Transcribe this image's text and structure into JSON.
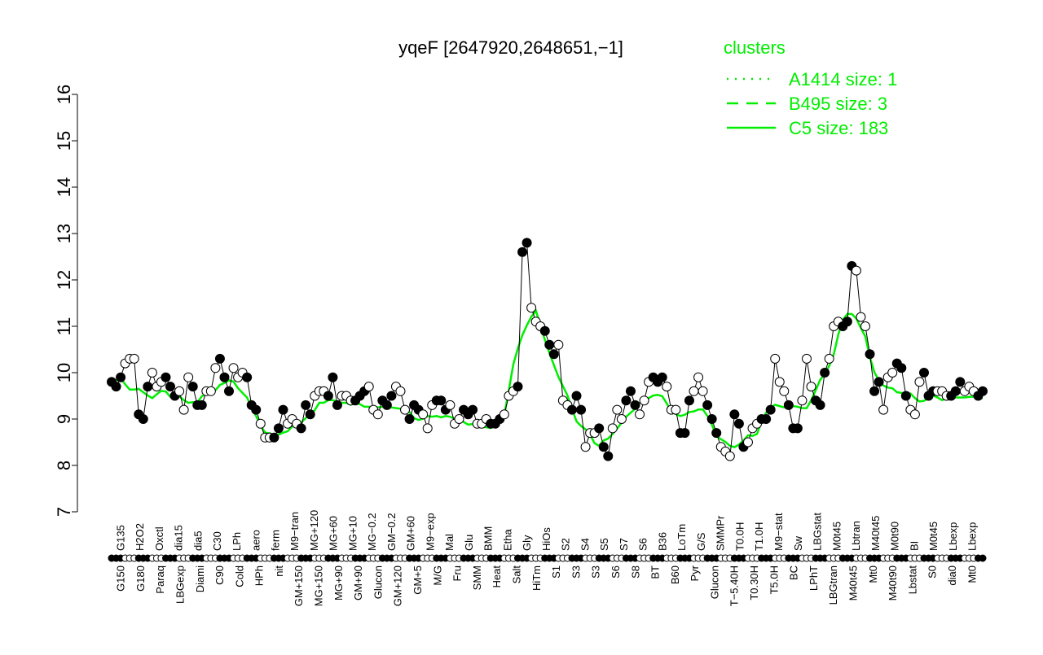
{
  "chart_data": {
    "type": "line",
    "title": "yqeF [2647920,2648651,−1]",
    "xlabel": "",
    "ylabel": "",
    "ylim": [
      7,
      16
    ],
    "yticks": [
      7,
      8,
      9,
      10,
      11,
      12,
      13,
      14,
      15,
      16
    ],
    "legend": {
      "title": "clusters",
      "placement": "top-right",
      "entries": [
        {
          "name": "A1414 size: 1",
          "style": "dotted"
        },
        {
          "name": "B495 size: 3",
          "style": "dashed"
        },
        {
          "name": "C5 size: 183",
          "style": "solid"
        }
      ]
    },
    "colors": {
      "cluster": "#00ee00",
      "points": "#000000"
    },
    "values": [
      9.8,
      9.7,
      9.9,
      10.2,
      10.3,
      10.3,
      9.1,
      9.0,
      9.7,
      10.0,
      9.7,
      9.8,
      9.9,
      9.7,
      9.5,
      9.6,
      9.2,
      9.9,
      9.7,
      9.3,
      9.3,
      9.6,
      9.6,
      10.1,
      10.3,
      9.9,
      9.6,
      10.1,
      9.9,
      10.0,
      9.9,
      9.3,
      9.2,
      8.9,
      8.6,
      8.6,
      8.6,
      8.8,
      9.2,
      8.9,
      9.0,
      8.9,
      8.8,
      9.3,
      9.1,
      9.5,
      9.6,
      9.6,
      9.5,
      9.9,
      9.3,
      9.5,
      9.5,
      9.4,
      9.4,
      9.5,
      9.6,
      9.7,
      9.2,
      9.1,
      9.4,
      9.3,
      9.5,
      9.7,
      9.6,
      9.2,
      9.0,
      9.3,
      9.2,
      9.1,
      8.8,
      9.3,
      9.4,
      9.4,
      9.2,
      9.3,
      8.9,
      9.0,
      9.2,
      9.1,
      9.2,
      8.9,
      8.9,
      9.0,
      8.9,
      8.9,
      9.0,
      9.1,
      9.5,
      9.6,
      9.7,
      12.6,
      12.8,
      11.4,
      11.1,
      11.0,
      10.9,
      10.6,
      10.4,
      10.6,
      9.4,
      9.3,
      9.2,
      9.5,
      9.2,
      8.4,
      8.7,
      8.7,
      8.8,
      8.4,
      8.2,
      8.8,
      9.2,
      9.0,
      9.4,
      9.6,
      9.3,
      9.1,
      9.4,
      9.8,
      9.9,
      9.8,
      9.9,
      9.7,
      9.2,
      9.2,
      8.7,
      8.7,
      9.4,
      9.6,
      9.9,
      9.6,
      9.3,
      9.0,
      8.7,
      8.4,
      8.3,
      8.2,
      9.1,
      8.9,
      8.4,
      8.5,
      8.8,
      8.9,
      9.0,
      9.0,
      9.2,
      10.3,
      9.8,
      9.6,
      9.3,
      8.8,
      8.8,
      9.4,
      10.3,
      9.7,
      9.4,
      9.3,
      10.0,
      10.3,
      11.0,
      11.1,
      11.0,
      11.1,
      12.3,
      12.2,
      11.2,
      11.0,
      10.4,
      9.6,
      9.8,
      9.2,
      9.9,
      10.0,
      10.2,
      10.1,
      9.5,
      9.2,
      9.1,
      9.8,
      10.0,
      9.5,
      9.6,
      9.6,
      9.6,
      9.5,
      9.5,
      9.6,
      9.8,
      9.6,
      9.7,
      9.6,
      9.5,
      9.6
    ],
    "top_labels": [
      "G135",
      "H2O2",
      "Oxctl",
      "dia15",
      "dia5",
      "C30",
      "LPh",
      "aero",
      "ferm",
      "M9−tran",
      "MG+120",
      "MG+60",
      "MG+10",
      "MG−0.2",
      "GM−0.2",
      "GM+60",
      "M9−exp",
      "Mal",
      "Glu",
      "BMM",
      "Etha",
      "Gly",
      "HiOs",
      "S2",
      "S4",
      "S5",
      "S7",
      "S6",
      "B36",
      "LoTm",
      "G/S",
      "SMMPr",
      "T0.0H",
      "T1.0H",
      "M9−stat",
      "Sw",
      "LBGstat",
      "M0t45",
      "Lbtran",
      "M40t45",
      "M0t90",
      "BI",
      "M0t45",
      "Lbexp",
      "Lbexp"
    ],
    "bottom_labels": [
      "G150",
      "G180",
      "Paraq",
      "LBGexp",
      "Diami",
      "C90",
      "Cold",
      "HPh",
      "nit",
      "GM+150",
      "MG+150",
      "MG+90",
      "GM+90",
      "Glucon",
      "GM+120",
      "GM+5",
      "M/G",
      "Fru",
      "SMM",
      "Heat",
      "Salt",
      "HiTm",
      "S1",
      "S3",
      "S3",
      "S6",
      "S8",
      "BT",
      "B60",
      "Pyr",
      "Glucon",
      "T−5.40H",
      "T0.30H",
      "T5.0H",
      "BC",
      "LPhT",
      "LBGtran",
      "M40t45",
      "Mt0",
      "M40t90",
      "Lbstat",
      "S0",
      "dia0",
      "Mt0"
    ]
  }
}
